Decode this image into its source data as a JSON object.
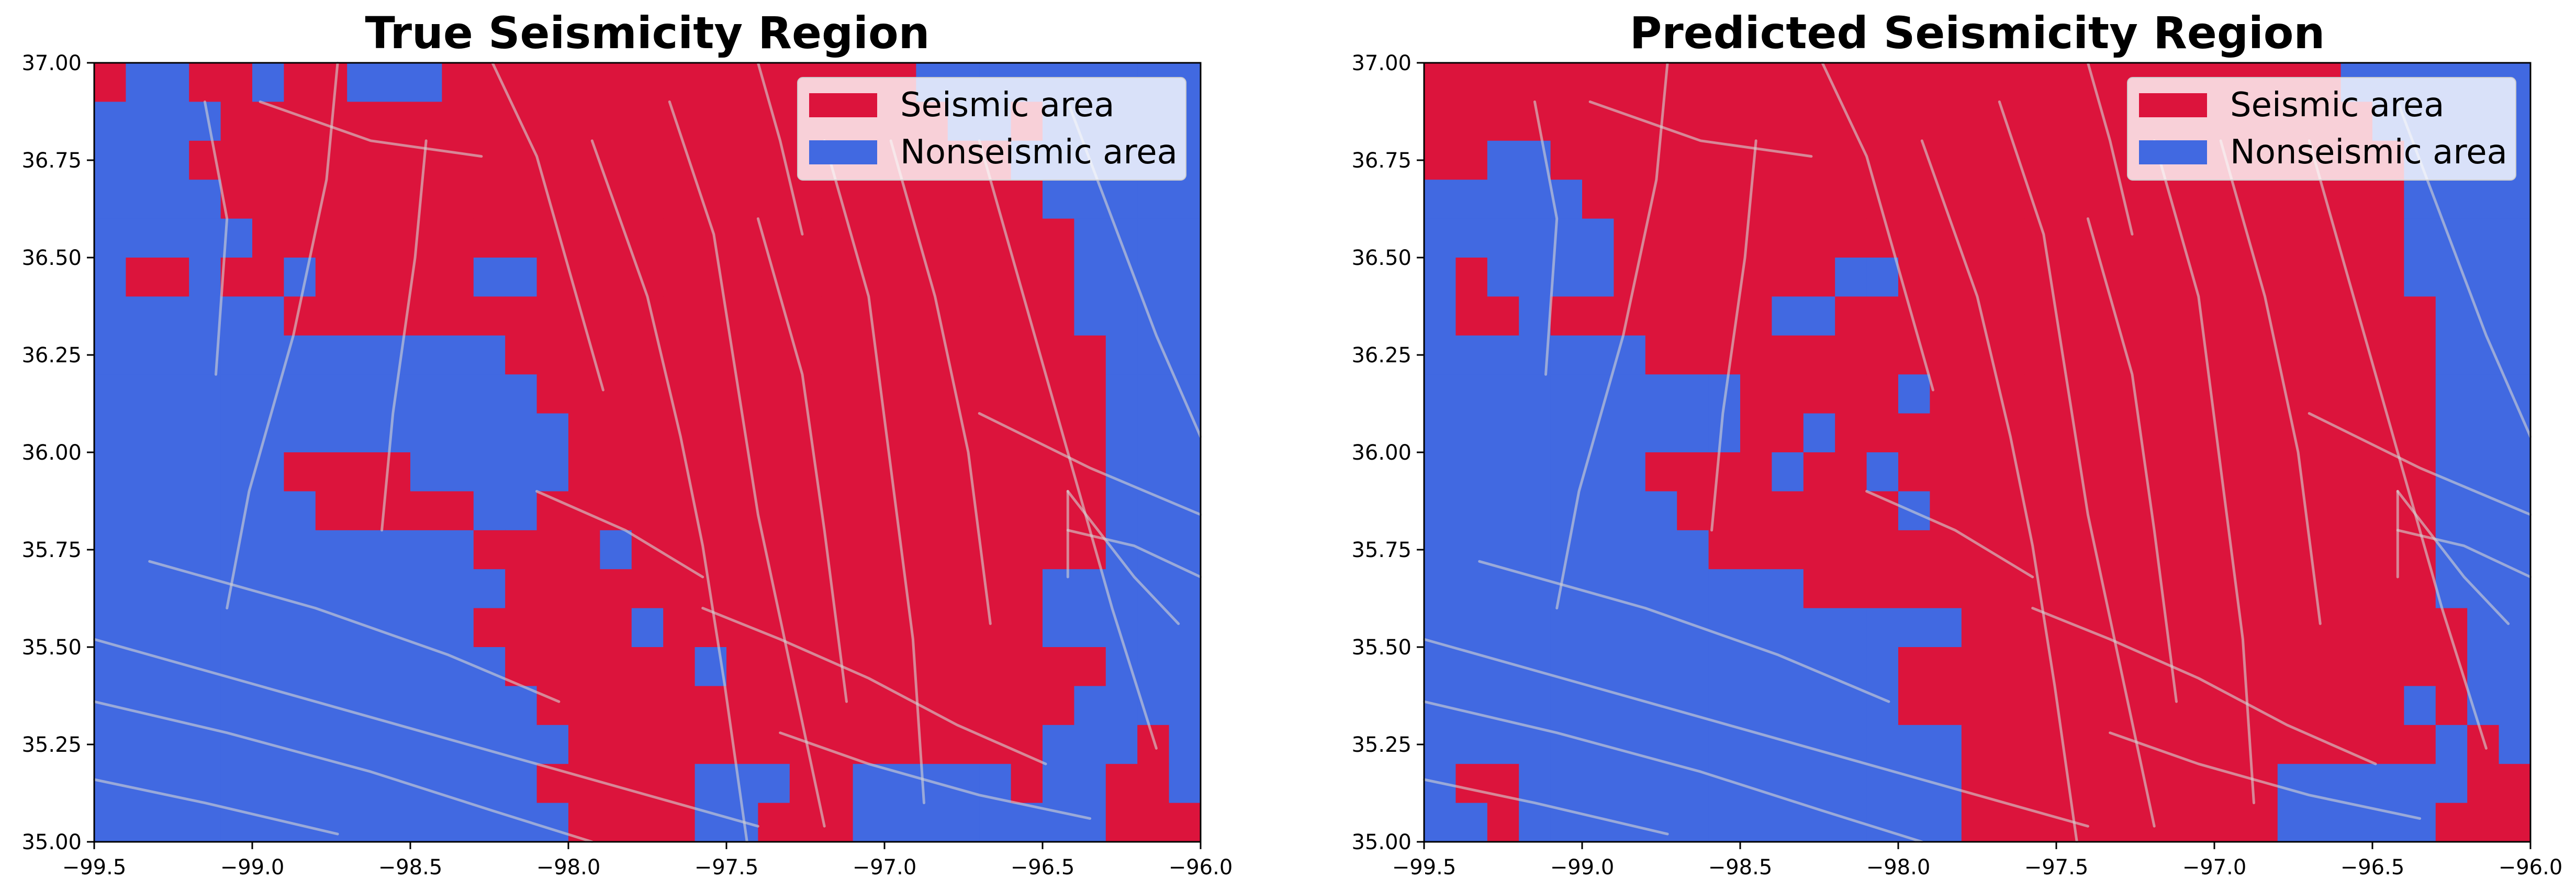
{
  "colors": {
    "seismic": "#DC143C",
    "nonseismic": "#4169E1",
    "fault": "#D3D3D3",
    "axis": "#000000",
    "legend_bg": "#FFFFFF"
  },
  "chart_data": [
    {
      "type": "heatmap",
      "title": "True Seismicity Region",
      "xlabel": "",
      "ylabel": "",
      "xlim": [
        -99.5,
        -96.0
      ],
      "ylim": [
        35.0,
        37.0
      ],
      "xticks": [
        "−99.5",
        "−99.0",
        "−98.5",
        "−98.0",
        "−97.5",
        "−97.0",
        "−96.5",
        "−96.0"
      ],
      "yticks": [
        "35.00",
        "35.25",
        "35.50",
        "35.75",
        "36.00",
        "36.25",
        "36.50",
        "36.75",
        "37.00"
      ],
      "legend": {
        "placement": "upper right",
        "entries": [
          "Seismic area",
          "Nonseismic area"
        ]
      },
      "grid_resolution_deg": 0.1,
      "grid_columns": 35,
      "grid_rows": 20,
      "grid_row_order": "north_to_south",
      "grid_legend": {
        "S": "Seismic area",
        "N": "Nonseismic area"
      },
      "grid": [
        "SNNSSNSSNNNSSSSSSSSSSSSSSSNNNNNNNNN",
        "NNNNSSSSSSSSSSSSSSSSSSSSSSSNNSNNNNN",
        "NNNSSSSSSSSSSSSSSSSSSSSSSSSSSNNNNNN",
        "NNNNSSSSSSSSSSSSSSSSSSSSSSSSSSNNNNN",
        "NNNNNSSSSSSSSSSSSSSSSSSSSSSSSSSNNNN",
        "NSSNSSNSSSSSNNSSSSSSSSSSSSSSSSSNNNN",
        "NNNNNNSSSSSSSSSSSSSSSSSSSSSSSSSNNNN",
        "NNNNNNNNNNNNNSSSSSSSSSSSSSSSSSSSNNN",
        "NNNNNNNNNNNNNNSSSSSSSSSSSSSSSSSSNNN",
        "NNNNNNNNNNNNNNNSSSSSSSSSSSSSSSSSNNN",
        "NNNNNNSSSSNNNNNSSSSSSSSSSSSSSSSSNNN",
        "NNNNNNNSSSSSNNSSSSSSSSSSSSSSSSSSNNN",
        "NNNNNNNNNNNNSSSSNSSSSSSSSSSSSSSSNNN",
        "NNNNNNNNNNNNNSSSSSSSSSSSSSSSSSNNNNN",
        "NNNNNNNNNNNNSSSSSNSSSSSSSSSSSSNNNNN",
        "NNNNNNNNNNNNNSSSSSSNSSSSSSSSSSSSNNN",
        "NNNNNNNNNNNNNNSSSSSSSSSSSSSSSSSNNNN",
        "NNNNNNNNNNNNNNNSSSSSSSSSSSSSSSNNNSN",
        "NNNNNNNNNNNNNNSSSSSNNNSSNNNNNSNNSSN",
        "NNNNNNNNNNNNNNNSSSSNNSSSNNNNNNNNSSS"
      ]
    },
    {
      "type": "heatmap",
      "title": "Predicted Seismicity Region",
      "xlabel": "",
      "ylabel": "",
      "xlim": [
        -99.5,
        -96.0
      ],
      "ylim": [
        35.0,
        37.0
      ],
      "xticks": [
        "−99.5",
        "−99.0",
        "−98.5",
        "−98.0",
        "−97.5",
        "−97.0",
        "−96.5",
        "−96.0"
      ],
      "yticks": [
        "35.00",
        "35.25",
        "35.50",
        "35.75",
        "36.00",
        "36.25",
        "36.50",
        "36.75",
        "37.00"
      ],
      "legend": {
        "placement": "upper right",
        "entries": [
          "Seismic area",
          "Nonseismic area"
        ]
      },
      "grid_resolution_deg": 0.1,
      "grid_columns": 35,
      "grid_rows": 20,
      "grid_row_order": "north_to_south",
      "grid_legend": {
        "S": "Seismic area",
        "N": "Nonseismic area"
      },
      "grid": [
        "SSSSSSSSSSSSSSSSSSSSSSSSSSSSSNNNNNN",
        "SSSSSSSSSSSSSSSSSSSSSSSSSSSSSSNNNNN",
        "SSNNSSSSSSSSSSSSSSSSSSSSSSSSSSSNNNN",
        "NNNNNSSSSSSSSSSSSSSSSSSSSSSSSSSNNNN",
        "NNNNNNSSSSSSSSSSSSSSSSSSSSSSSSSNNNN",
        "NSNNNNSSSSSSSNNSSSSSSSSSSSSSSSSNNNN",
        "NSSNSSSSSSSNNSSSSSSSSSSSSSSSSSSSNNN",
        "NNNNNNNSSSSSSSSSSSSSSSSSSSSSSSSSNNN",
        "NNNNNNNNNNSSSSSNSSSSSSSSSSSSSSSSNNN",
        "NNNNNNNNNNSSNSSSSSSSSSSSSSSSSSSSNNN",
        "NNNNNNNSSSSNSSNSSSSSSSSSSSSSSSSSNNN",
        "NNNNNNNNSSSSSSSNSSSSSSSSSSSSSSSSNNN",
        "NNNNNNNNNSSSSSSSSSSSSSSSSSSSSSSSNNN",
        "NNNNNNNNNNNNSSSSSSSSSSSSSSSSSSSSNNN",
        "NNNNNNNNNNNNNNNNNSSSSSSSSSSSSSSSSNN",
        "NNNNNNNNNNNNNNNSSSSSSSSSSSSSSSSSSNN",
        "NNNNNNNNNNNNNNNSSSSSSSSSSSSSSSSNSNN",
        "NNNNNNNNNNNNNNNNNSSSSSSSSSSSSSSSNSN",
        "NSSNNNNNNNNNNNNNNSSSSSSSSSSNNNNNNSS",
        "NNSNNNNNNNNNNNNNNSSSSSSSSSSNNNNNSSS"
      ]
    }
  ]
}
